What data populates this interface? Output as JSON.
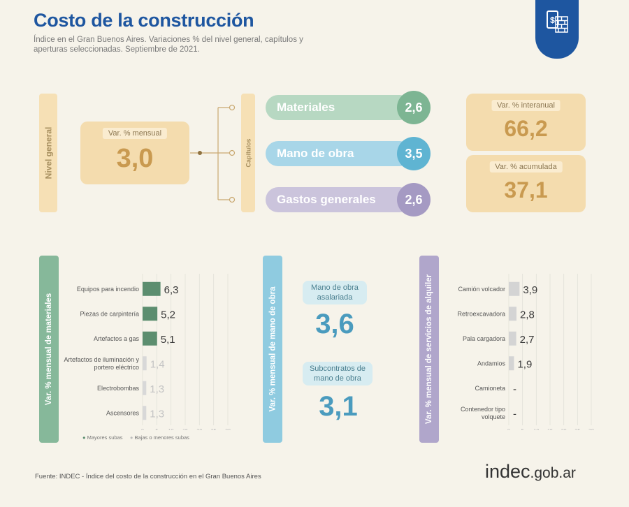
{
  "header": {
    "title": "Costo de la construcción",
    "subtitle": "Índice en el Gran Buenos Aires. Variaciones % del nivel general, capítulos y aperturas seleccionadas. Septiembre de 2021."
  },
  "colors": {
    "title": "#1e56a0",
    "materiales": "#7db593",
    "mano_obra": "#5fb4d2",
    "gastos": "#a59ac3",
    "sand": "#f4dcae",
    "bars_up": "#5c8e6f",
    "bars_down": "#d8d8d8",
    "lab": "#4a9bbe"
  },
  "nivel_general": {
    "vertical_label": "Nivel general",
    "card_label": "Var. % mensual",
    "value": "3,0"
  },
  "capitulos": {
    "vertical_label": "Capítulos",
    "items": [
      {
        "label": "Materiales",
        "value": "2,6"
      },
      {
        "label": "Mano de obra",
        "value": "3,5"
      },
      {
        "label": "Gastos generales",
        "value": "2,6"
      }
    ]
  },
  "interanual": {
    "label": "Var. % interanual",
    "value": "66,2"
  },
  "acumulada": {
    "label": "Var. % acumulada",
    "value": "37,1"
  },
  "materiales_panel": {
    "vertical_label": "Var. % mensual de materiales",
    "legend_up": "Mayores subas",
    "legend_down": "Bajas o menores subas"
  },
  "mano_obra_panel": {
    "vertical_label": "Var. % mensual de mano de obra",
    "asalariada_label": "Mano de obra asalariada",
    "asalariada_value": "3,6",
    "subcontratos_label": "Subcontratos de mano de obra",
    "subcontratos_value": "3,1"
  },
  "alquiler_panel": {
    "vertical_label": "Var. % mensual de servicios de alquiler"
  },
  "chart_data": [
    {
      "type": "bar",
      "orientation": "horizontal",
      "title": "Var. % mensual de materiales",
      "categories": [
        "Equipos para incendio",
        "Piezas de carpintería",
        "Artefactos a gas",
        "Artefactos de iluminación y portero eléctrico",
        "Electrobombas",
        "Ascensores"
      ],
      "values": [
        6.3,
        5.2,
        5.1,
        1.4,
        1.3,
        1.3
      ],
      "labels": [
        "6,3",
        "5,2",
        "5,1",
        "1,4",
        "1,3",
        "1,3"
      ],
      "groups": [
        "up",
        "up",
        "up",
        "down",
        "down",
        "down"
      ],
      "ticks": [
        "0",
        "5",
        "10",
        "15",
        "20",
        "25",
        "30"
      ],
      "xlim": [
        0,
        30
      ],
      "grid": true
    },
    {
      "type": "bar",
      "orientation": "horizontal",
      "title": "Var. % mensual de servicios de alquiler",
      "categories": [
        "Camión volcador",
        "Retroexcavadora",
        "Pala cargadora",
        "Andamios",
        "Camioneta",
        "Contenedor tipo volquete"
      ],
      "values": [
        3.9,
        2.8,
        2.7,
        1.9,
        null,
        null
      ],
      "labels": [
        "3,9",
        "2,8",
        "2,7",
        "1,9",
        "-",
        "-"
      ],
      "ticks": [
        "0",
        "5",
        "10",
        "15",
        "20",
        "25",
        "30"
      ],
      "xlim": [
        0,
        30
      ],
      "grid": true
    }
  ],
  "footer": {
    "source": "Fuente: INDEC - Índice del costo de la construcción en el Gran Buenos Aires",
    "logo_main": "indec",
    "logo_suffix": ".gob.ar"
  },
  "icons": {
    "badge": "building-cost-icon"
  }
}
